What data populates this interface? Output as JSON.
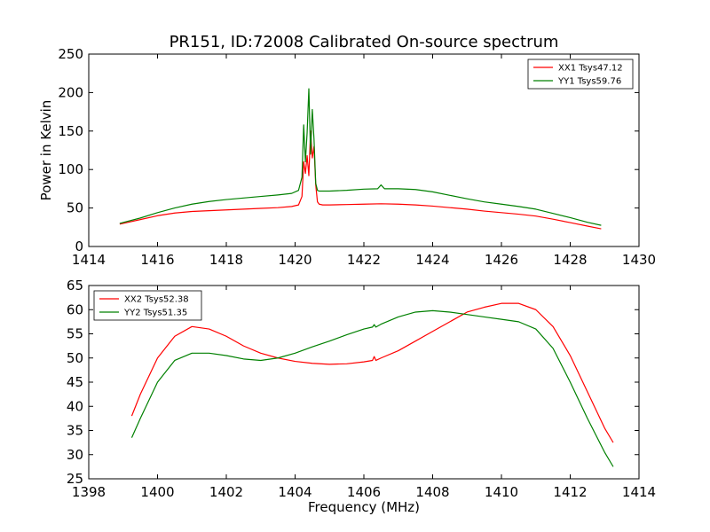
{
  "figure": {
    "title": "PR151, ID:72008 Calibrated On-source spectrum",
    "background": "#ffffff"
  },
  "chart_data": [
    {
      "type": "line",
      "ylabel": "Power in Kelvin",
      "xlabel": "",
      "xlim": [
        1414,
        1430
      ],
      "ylim": [
        0,
        250
      ],
      "xticks": [
        1414,
        1416,
        1418,
        1420,
        1422,
        1424,
        1426,
        1428,
        1430
      ],
      "yticks": [
        0,
        50,
        100,
        150,
        200,
        250
      ],
      "legend_position": "top-right",
      "series": [
        {
          "name": "XX1 Tsys47.12",
          "color": "#ff0000",
          "x": [
            1414.9,
            1415.5,
            1416,
            1416.5,
            1417,
            1417.5,
            1418,
            1418.5,
            1419,
            1419.5,
            1419.9,
            1420.1,
            1420.2,
            1420.25,
            1420.3,
            1420.35,
            1420.4,
            1420.45,
            1420.5,
            1420.55,
            1420.6,
            1420.65,
            1420.7,
            1420.8,
            1421,
            1421.5,
            1422,
            1422.5,
            1423,
            1423.5,
            1424,
            1424.5,
            1425,
            1425.5,
            1426,
            1426.5,
            1427,
            1427.5,
            1428,
            1428.5,
            1428.9
          ],
          "y": [
            29,
            35,
            40,
            43.5,
            45.5,
            46.5,
            47.5,
            48.5,
            49.5,
            50.5,
            52,
            54,
            65,
            110,
            95,
            118,
            92,
            150,
            115,
            130,
            80,
            58,
            55,
            54,
            54,
            54.5,
            55,
            55.5,
            55,
            54,
            52.5,
            50.5,
            48.5,
            46,
            44,
            42,
            39.5,
            35.5,
            31,
            26.5,
            23
          ]
        },
        {
          "name": "YY1 Tsys59.76",
          "color": "#008000",
          "x": [
            1414.9,
            1415.5,
            1416,
            1416.5,
            1417,
            1417.5,
            1418,
            1418.5,
            1419,
            1419.5,
            1419.9,
            1420.1,
            1420.2,
            1420.25,
            1420.3,
            1420.35,
            1420.4,
            1420.45,
            1420.5,
            1420.55,
            1420.6,
            1420.65,
            1420.7,
            1420.8,
            1421,
            1421.5,
            1422,
            1422.4,
            1422.5,
            1422.6,
            1423,
            1423.5,
            1424,
            1424.5,
            1425,
            1425.5,
            1426,
            1426.5,
            1427,
            1427.5,
            1428,
            1428.5,
            1428.9
          ],
          "y": [
            30,
            37,
            44,
            50,
            55,
            58.5,
            61,
            63,
            65,
            67,
            69,
            73,
            90,
            158,
            110,
            148,
            205,
            120,
            178,
            140,
            82,
            73,
            72,
            72,
            72,
            73,
            74.5,
            75,
            80,
            75,
            75,
            74,
            71,
            66.5,
            62,
            58,
            55,
            52,
            48.5,
            43,
            37.5,
            31.5,
            27.5
          ]
        }
      ]
    },
    {
      "type": "line",
      "ylabel": "",
      "xlabel": "Frequency (MHz)",
      "xlim": [
        1398,
        1414
      ],
      "ylim": [
        25,
        65
      ],
      "xticks": [
        1398,
        1400,
        1402,
        1404,
        1406,
        1408,
        1410,
        1412,
        1414
      ],
      "yticks": [
        25,
        30,
        35,
        40,
        45,
        50,
        55,
        60,
        65
      ],
      "legend_position": "top-left",
      "series": [
        {
          "name": "XX2 Tsys52.38",
          "color": "#ff0000",
          "x": [
            1399.25,
            1399.5,
            1400,
            1400.5,
            1401,
            1401.5,
            1402,
            1402.5,
            1403,
            1403.5,
            1404,
            1404.5,
            1405,
            1405.5,
            1406,
            1406.25,
            1406.3,
            1406.35,
            1406.5,
            1407,
            1407.5,
            1408,
            1408.5,
            1409,
            1409.5,
            1410,
            1410.5,
            1411,
            1411.5,
            1412,
            1412.5,
            1413,
            1413.25
          ],
          "y": [
            38,
            42.5,
            50,
            54.5,
            56.5,
            56,
            54.5,
            52.5,
            51,
            50,
            49.3,
            48.9,
            48.7,
            48.8,
            49.2,
            49.5,
            50.3,
            49.5,
            50,
            51.5,
            53.5,
            55.5,
            57.5,
            59.5,
            60.5,
            61.3,
            61.3,
            60,
            56.5,
            50.5,
            43,
            35.5,
            32.5
          ]
        },
        {
          "name": "YY2 Tsys51.35",
          "color": "#008000",
          "x": [
            1399.25,
            1399.5,
            1400,
            1400.5,
            1401,
            1401.5,
            1402,
            1402.5,
            1403,
            1403.5,
            1404,
            1404.5,
            1405,
            1405.5,
            1406,
            1406.25,
            1406.3,
            1406.35,
            1406.5,
            1407,
            1407.5,
            1408,
            1408.5,
            1409,
            1409.5,
            1410,
            1410.5,
            1411,
            1411.5,
            1412,
            1412.5,
            1413,
            1413.25
          ],
          "y": [
            33.5,
            37.5,
            45,
            49.5,
            51,
            51,
            50.5,
            49.8,
            49.5,
            50,
            51,
            52.3,
            53.5,
            54.8,
            56,
            56.4,
            56.9,
            56.4,
            57,
            58.5,
            59.5,
            59.8,
            59.5,
            59,
            58.5,
            58,
            57.5,
            56,
            52,
            45,
            37.5,
            30.5,
            27.5
          ]
        }
      ]
    }
  ]
}
